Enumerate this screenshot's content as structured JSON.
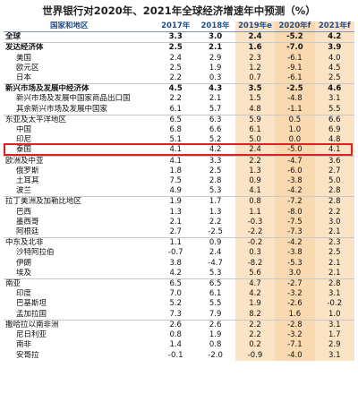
{
  "title": "世界银行对2020年、2021年全球经济增速年中预测（%）",
  "header": {
    "region": "国家和地区",
    "y2017": "2017年",
    "y2018": "2018年",
    "y2019": "2019年e",
    "y2020": "2020年f",
    "y2021": "2021年f"
  },
  "rows": [
    {
      "name": "全球",
      "v": [
        "3.3",
        "3.0",
        "2.4",
        "-5.2",
        "4.2"
      ],
      "level": 0,
      "bold": true
    },
    {
      "name": "发达经济体",
      "v": [
        "2.5",
        "2.1",
        "1.6",
        "-7.0",
        "3.9"
      ],
      "level": 0,
      "bold": true
    },
    {
      "name": "美国",
      "v": [
        "2.4",
        "2.9",
        "2.3",
        "-6.1",
        "4.0"
      ],
      "level": 1
    },
    {
      "name": "欧元区",
      "v": [
        "2.5",
        "1.9",
        "1.2",
        "-9.1",
        "4.5"
      ],
      "level": 1
    },
    {
      "name": "日本",
      "v": [
        "2.2",
        "0.3",
        "0.7",
        "-6.1",
        "2.5"
      ],
      "level": 1
    },
    {
      "name": "新兴市场及发展中经济体",
      "v": [
        "4.5",
        "4.3",
        "3.5",
        "-2.5",
        "4.6"
      ],
      "level": 0,
      "bold": true
    },
    {
      "name": "新兴市场及发展中国家商品出口国",
      "v": [
        "2.2",
        "2.1",
        "1.5",
        "-4.8",
        "3.1"
      ],
      "level": 1
    },
    {
      "name": "其余新兴市场及发展中国家",
      "v": [
        "6.1",
        "5.7",
        "4.8",
        "-1.1",
        "5.5"
      ],
      "level": 1
    },
    {
      "name": "东亚及太平洋地区",
      "v": [
        "6.5",
        "6.3",
        "5.9",
        "0.5",
        "6.6"
      ],
      "level": 0
    },
    {
      "name": "中国",
      "v": [
        "6.8",
        "6.6",
        "6.1",
        "1.0",
        "6.9"
      ],
      "level": 1,
      "highlight": true
    },
    {
      "name": "印尼",
      "v": [
        "5.1",
        "5.2",
        "5.0",
        "0.0",
        "4.8"
      ],
      "level": 1
    },
    {
      "name": "泰国",
      "v": [
        "4.1",
        "4.2",
        "2.4",
        "-5.0",
        "4.1"
      ],
      "level": 1
    },
    {
      "name": "欧洲及中亚",
      "v": [
        "4.1",
        "3.3",
        "2.2",
        "-4.7",
        "3.6"
      ],
      "level": 0
    },
    {
      "name": "俄罗斯",
      "v": [
        "1.8",
        "2.5",
        "1.3",
        "-6.0",
        "2.7"
      ],
      "level": 1
    },
    {
      "name": "土耳其",
      "v": [
        "7.5",
        "2.8",
        "0.9",
        "-3.8",
        "5.0"
      ],
      "level": 1
    },
    {
      "name": "波兰",
      "v": [
        "4.9",
        "5.3",
        "4.1",
        "-4.2",
        "2.8"
      ],
      "level": 1
    },
    {
      "name": "拉丁美洲及加勒比地区",
      "v": [
        "1.9",
        "1.7",
        "0.8",
        "-7.2",
        "2.8"
      ],
      "level": 0
    },
    {
      "name": "巴西",
      "v": [
        "1.3",
        "1.3",
        "1.1",
        "-8.0",
        "2.2"
      ],
      "level": 1
    },
    {
      "name": "墨西哥",
      "v": [
        "2.1",
        "2.2",
        "-0.3",
        "-7.5",
        "3.0"
      ],
      "level": 1
    },
    {
      "name": "阿根廷",
      "v": [
        "2.7",
        "-2.5",
        "-2.2",
        "-7.3",
        "2.1"
      ],
      "level": 1
    },
    {
      "name": "中东及北非",
      "v": [
        "1.1",
        "0.9",
        "-0.2",
        "-4.2",
        "2.3"
      ],
      "level": 0
    },
    {
      "name": "沙特阿拉伯",
      "v": [
        "-0.7",
        "2.4",
        "0.3",
        "-3.8",
        "2.5"
      ],
      "level": 1
    },
    {
      "name": "伊朗",
      "v": [
        "3.8",
        "-4.7",
        "-8.2",
        "-5.3",
        "2.1"
      ],
      "level": 1
    },
    {
      "name": "埃及",
      "v": [
        "4.2",
        "5.3",
        "5.6",
        "3.0",
        "2.1"
      ],
      "level": 1
    },
    {
      "name": "南亚",
      "v": [
        "6.5",
        "6.5",
        "4.7",
        "-2.7",
        "2.8"
      ],
      "level": 0
    },
    {
      "name": "印度",
      "v": [
        "7.0",
        "6.1",
        "4.2",
        "-3.2",
        "3.1"
      ],
      "level": 1
    },
    {
      "name": "巴基斯坦",
      "v": [
        "5.2",
        "5.5",
        "1.9",
        "-2.6",
        "-0.2"
      ],
      "level": 1
    },
    {
      "name": "孟加拉国",
      "v": [
        "7.3",
        "7.9",
        "8.2",
        "1.6",
        "1.0"
      ],
      "level": 1
    },
    {
      "name": "撒哈拉以南非洲",
      "v": [
        "2.6",
        "2.6",
        "2.2",
        "-2.8",
        "3.1"
      ],
      "level": 0
    },
    {
      "name": "尼日利亚",
      "v": [
        "0.8",
        "1.9",
        "2.2",
        "-3.2",
        "1.7"
      ],
      "level": 1
    },
    {
      "name": "南非",
      "v": [
        "1.4",
        "0.8",
        "0.2",
        "-7.1",
        "2.9"
      ],
      "level": 1
    },
    {
      "name": "安哥拉",
      "v": [
        "-0.1",
        "-2.0",
        "-0.9",
        "-4.0",
        "3.1"
      ],
      "level": 1
    }
  ]
}
